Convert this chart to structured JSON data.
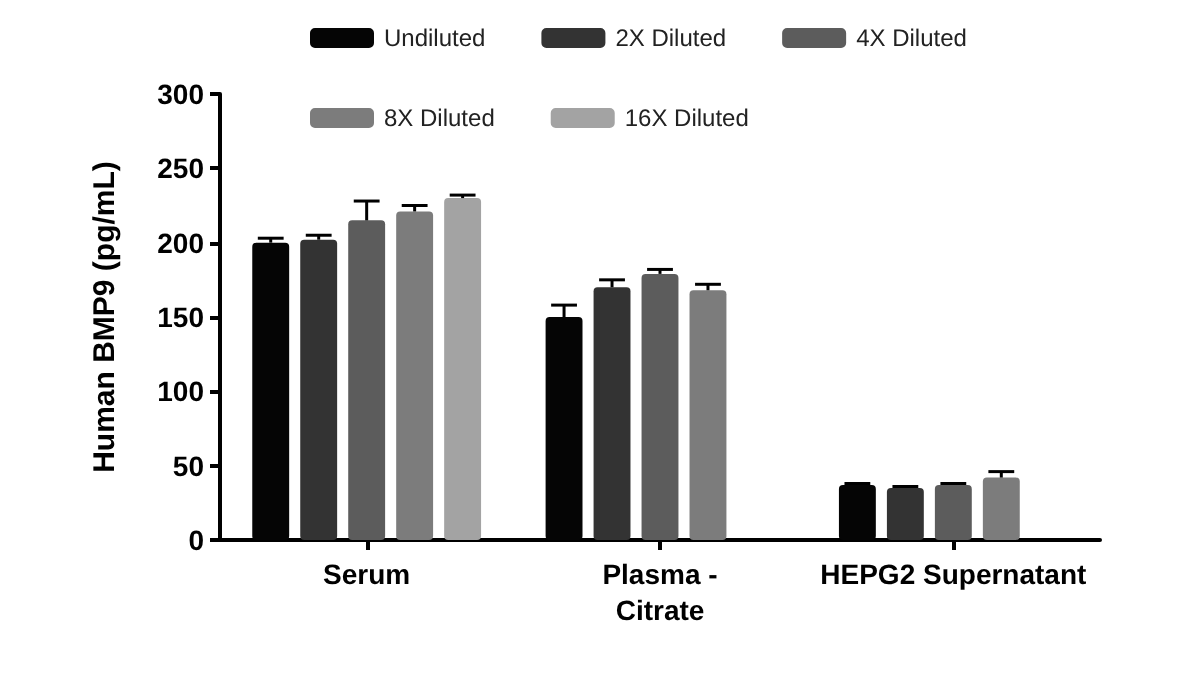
{
  "chart_data": {
    "type": "bar",
    "ylabel": "Human BMP9 (pg/mL)",
    "categories": [
      "Serum",
      "Plasma -\nCitrate",
      "HEPG2 Supernatant"
    ],
    "series": [
      {
        "name": "Undiluted",
        "color": "#050505",
        "values": [
          200,
          150,
          37
        ],
        "errors": [
          3,
          8,
          1
        ]
      },
      {
        "name": "2X Diluted",
        "color": "#333333",
        "values": [
          202,
          170,
          35
        ],
        "errors": [
          3,
          5,
          1
        ]
      },
      {
        "name": "4X Diluted",
        "color": "#5c5c5c",
        "values": [
          215,
          179,
          37
        ],
        "errors": [
          13,
          3,
          1
        ]
      },
      {
        "name": "8X Diluted",
        "color": "#7c7c7c",
        "values": [
          221,
          168,
          42
        ],
        "errors": [
          4,
          4,
          4
        ]
      },
      {
        "name": "16X Diluted",
        "color": "#a3a3a3",
        "values": [
          230,
          null,
          null
        ],
        "errors": [
          2,
          null,
          null
        ]
      }
    ],
    "ylim": [
      0,
      300
    ],
    "yticks": [
      0,
      50,
      100,
      150,
      200,
      250,
      300
    ],
    "grid": false,
    "legend": "top"
  }
}
